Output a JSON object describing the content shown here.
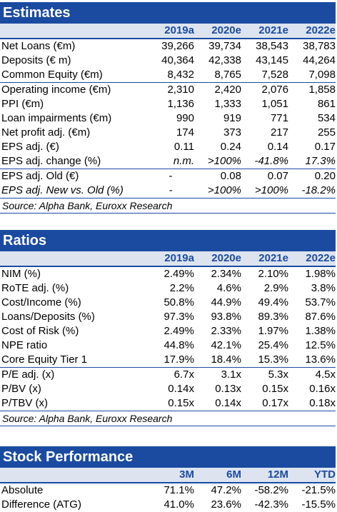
{
  "estimates": {
    "title": "Estimates",
    "years": [
      "2019a",
      "2020e",
      "2021e",
      "2022e"
    ],
    "rows": [
      {
        "label": "Net Loans (€m)",
        "values": [
          "39,266",
          "39,734",
          "38,543",
          "38,783"
        ]
      },
      {
        "label": "Deposits (€ m)",
        "values": [
          "40,364",
          "42,338",
          "43,145",
          "44,264"
        ]
      },
      {
        "label": "Common Equity (€m)",
        "values": [
          "8,432",
          "8,765",
          "7,528",
          "7,098"
        ]
      },
      {
        "label": "Operating income (€m)",
        "values": [
          "2,310",
          "2,420",
          "2,076",
          "1,858"
        ]
      },
      {
        "label": "PPI (€m)",
        "values": [
          "1,136",
          "1,333",
          "1,051",
          "861"
        ]
      },
      {
        "label": "Loan impairments (€m)",
        "values": [
          "990",
          "919",
          "771",
          "534"
        ]
      },
      {
        "label": "Net profit adj. (€m)",
        "values": [
          "174",
          "373",
          "217",
          "255"
        ]
      },
      {
        "label": "EPS adj. (€)",
        "values": [
          "0.11",
          "0.24",
          "0.14",
          "0.17"
        ]
      },
      {
        "label": "EPS adj. change (%)",
        "values": [
          "n.m.",
          ">100%",
          "-41.8%",
          "17.3%"
        ]
      },
      {
        "label": "EPS adj. Old (€)",
        "values": [
          "-",
          "0.08",
          "0.07",
          "0.20"
        ]
      },
      {
        "label": "EPS adj. New vs. Old (%)",
        "values": [
          "-",
          ">100%",
          ">100%",
          "-18.2%"
        ]
      }
    ],
    "source": "Source: Alpha Bank, Euroxx Research"
  },
  "ratios": {
    "title": "Ratios",
    "years": [
      "2019a",
      "2020e",
      "2021e",
      "2022e"
    ],
    "rows": [
      {
        "label": "NIM (%)",
        "values": [
          "2.49%",
          "2.34%",
          "2.10%",
          "1.98%"
        ]
      },
      {
        "label": "RoTE adj. (%)",
        "values": [
          "2.2%",
          "4.6%",
          "2.9%",
          "3.8%"
        ]
      },
      {
        "label": "Cost/Income (%)",
        "values": [
          "50.8%",
          "44.9%",
          "49.4%",
          "53.7%"
        ]
      },
      {
        "label": "Loans/Deposits (%)",
        "values": [
          "97.3%",
          "93.8%",
          "89.3%",
          "87.6%"
        ]
      },
      {
        "label": "Cost of Risk (%)",
        "values": [
          "2.49%",
          "2.33%",
          "1.97%",
          "1.38%"
        ]
      },
      {
        "label": "NPE ratio",
        "values": [
          "44.8%",
          "42.1%",
          "25.4%",
          "12.5%"
        ]
      },
      {
        "label": "Core Equity Tier 1",
        "values": [
          "17.9%",
          "18.4%",
          "15.3%",
          "13.6%"
        ]
      },
      {
        "label": "P/E adj. (x)",
        "values": [
          "6.7x",
          "3.1x",
          "5.3x",
          "4.5x"
        ]
      },
      {
        "label": "P/BV (x)",
        "values": [
          "0.14x",
          "0.13x",
          "0.15x",
          "0.16x"
        ]
      },
      {
        "label": "P/TBV (x)",
        "values": [
          "0.15x",
          "0.14x",
          "0.17x",
          "0.18x"
        ]
      }
    ],
    "source": "Source: Alpha Bank, Euroxx Research"
  },
  "stock": {
    "title": "Stock Performance",
    "periods": [
      "3M",
      "6M",
      "12M",
      "YTD"
    ],
    "rows": [
      {
        "label": "Absolute",
        "values": [
          "71.1%",
          "47.2%",
          "-58.2%",
          "-21.5%"
        ]
      },
      {
        "label": "Difference (ATG)",
        "values": [
          "41.0%",
          "23.6%",
          "-42.3%",
          "-15.5%"
        ]
      }
    ]
  }
}
